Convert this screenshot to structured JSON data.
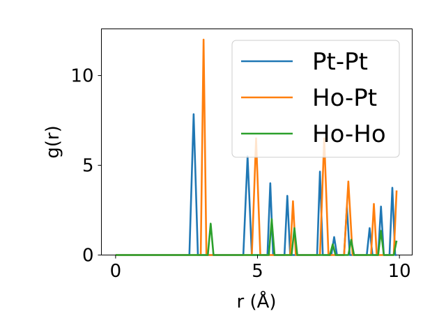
{
  "chart_data": {
    "type": "line",
    "title": "",
    "xlabel": "r (Å)",
    "ylabel": "g(r)",
    "xlim": [
      -0.5,
      10.45
    ],
    "ylim": [
      0,
      12.6
    ],
    "xticks": [
      0,
      5,
      10
    ],
    "yticks": [
      0,
      5,
      10
    ],
    "grid": false,
    "legend_position": "top-right",
    "series": [
      {
        "name": "Pt-Pt",
        "color": "#1f77b4",
        "points": [
          [
            0,
            0
          ],
          [
            2.6,
            0
          ],
          [
            2.75,
            7.85
          ],
          [
            2.9,
            0
          ],
          [
            4.5,
            0
          ],
          [
            4.65,
            5.5
          ],
          [
            4.8,
            0
          ],
          [
            5.35,
            0
          ],
          [
            5.45,
            4.0
          ],
          [
            5.55,
            0
          ],
          [
            5.95,
            0
          ],
          [
            6.05,
            3.3
          ],
          [
            6.15,
            0
          ],
          [
            7.1,
            0
          ],
          [
            7.2,
            4.65
          ],
          [
            7.3,
            0
          ],
          [
            7.6,
            0
          ],
          [
            7.7,
            1.0
          ],
          [
            7.8,
            0
          ],
          [
            8.05,
            0
          ],
          [
            8.15,
            2.7
          ],
          [
            8.25,
            0
          ],
          [
            8.85,
            0
          ],
          [
            8.95,
            1.5
          ],
          [
            9.05,
            0
          ],
          [
            9.25,
            0
          ],
          [
            9.35,
            2.7
          ],
          [
            9.45,
            0
          ],
          [
            9.65,
            0
          ],
          [
            9.75,
            3.75
          ],
          [
            9.85,
            0
          ],
          [
            9.9,
            0
          ]
        ]
      },
      {
        "name": "Ho-Pt",
        "color": "#ff7f0e",
        "points": [
          [
            0,
            0
          ],
          [
            3.0,
            0
          ],
          [
            3.1,
            12.0
          ],
          [
            3.2,
            0
          ],
          [
            4.8,
            0
          ],
          [
            4.95,
            6.5
          ],
          [
            5.1,
            0
          ],
          [
            6.15,
            0
          ],
          [
            6.25,
            3.0
          ],
          [
            6.35,
            0
          ],
          [
            7.2,
            0
          ],
          [
            7.35,
            6.5
          ],
          [
            7.5,
            0
          ],
          [
            8.05,
            0
          ],
          [
            8.2,
            4.1
          ],
          [
            8.35,
            0
          ],
          [
            9.0,
            0
          ],
          [
            9.1,
            2.85
          ],
          [
            9.2,
            0
          ],
          [
            9.8,
            0
          ],
          [
            9.9,
            3.6
          ]
        ]
      },
      {
        "name": "Ho-Ho",
        "color": "#2ca02c",
        "points": [
          [
            0,
            0
          ],
          [
            3.25,
            0
          ],
          [
            3.35,
            1.75
          ],
          [
            3.45,
            0
          ],
          [
            5.4,
            0
          ],
          [
            5.5,
            2.0
          ],
          [
            5.6,
            0
          ],
          [
            6.2,
            0
          ],
          [
            6.3,
            1.5
          ],
          [
            6.4,
            0
          ],
          [
            7.55,
            0
          ],
          [
            7.65,
            0.6
          ],
          [
            7.75,
            0
          ],
          [
            8.2,
            0
          ],
          [
            8.3,
            0.85
          ],
          [
            8.4,
            0
          ],
          [
            9.25,
            0
          ],
          [
            9.35,
            1.35
          ],
          [
            9.45,
            0
          ],
          [
            9.8,
            0
          ],
          [
            9.9,
            0.8
          ]
        ]
      }
    ]
  }
}
